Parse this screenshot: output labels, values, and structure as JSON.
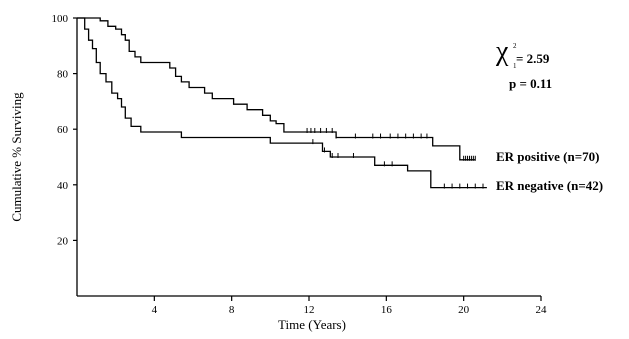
{
  "chart_data": {
    "type": "line",
    "title": "",
    "xlabel": "Time (Years)",
    "ylabel": "Cumulative % Surviving",
    "xlim": [
      0,
      24
    ],
    "ylim": [
      0,
      100
    ],
    "x_ticks": [
      "4",
      "8",
      "12",
      "16",
      "20",
      "24"
    ],
    "y_ticks": [
      "20",
      "40",
      "60",
      "80",
      "100"
    ],
    "grid": false,
    "legend": "direct labels at right",
    "annotations": {
      "chi_symbol": "χ",
      "chi_superscript": "2",
      "chi_subscript": "1",
      "chi_value": "= 2.59",
      "p_value": "p = 0.11"
    },
    "series": [
      {
        "name": "ER positive (n=70)",
        "color": "#000000",
        "steps": [
          [
            0,
            100
          ],
          [
            1.2,
            99
          ],
          [
            1.6,
            97
          ],
          [
            2.0,
            96
          ],
          [
            2.3,
            94
          ],
          [
            2.5,
            92
          ],
          [
            2.7,
            88
          ],
          [
            3.0,
            86
          ],
          [
            3.3,
            84
          ],
          [
            4.8,
            82
          ],
          [
            5.1,
            79
          ],
          [
            5.4,
            77
          ],
          [
            5.8,
            75
          ],
          [
            6.6,
            73
          ],
          [
            7.0,
            71
          ],
          [
            8.1,
            69
          ],
          [
            8.8,
            67
          ],
          [
            9.6,
            65
          ],
          [
            10.0,
            63
          ],
          [
            10.3,
            62
          ],
          [
            10.7,
            59
          ],
          [
            13.4,
            57
          ],
          [
            18.4,
            54
          ],
          [
            19.8,
            49
          ],
          [
            20.6,
            49
          ]
        ],
        "censored": [
          11.9,
          12.1,
          12.3,
          12.6,
          12.9,
          13.2,
          13.4,
          14.4,
          15.3,
          15.7,
          16.2,
          16.6,
          17.0,
          17.4,
          17.8,
          18.1,
          20.0,
          20.1,
          20.2,
          20.3,
          20.4,
          20.5,
          20.6
        ]
      },
      {
        "name": "ER negative (n=42)",
        "color": "#000000",
        "steps": [
          [
            0,
            100
          ],
          [
            0.4,
            96
          ],
          [
            0.6,
            92
          ],
          [
            0.8,
            89
          ],
          [
            1.0,
            84
          ],
          [
            1.2,
            80
          ],
          [
            1.5,
            77
          ],
          [
            1.8,
            73
          ],
          [
            2.1,
            71
          ],
          [
            2.3,
            68
          ],
          [
            2.5,
            64
          ],
          [
            2.8,
            61
          ],
          [
            3.3,
            59
          ],
          [
            5.4,
            57
          ],
          [
            10.0,
            55
          ],
          [
            12.7,
            52
          ],
          [
            13.1,
            50
          ],
          [
            15.4,
            47
          ],
          [
            17.1,
            45
          ],
          [
            18.3,
            39
          ],
          [
            21.2,
            39
          ]
        ],
        "censored": [
          12.2,
          12.8,
          13.2,
          13.5,
          14.3,
          15.9,
          16.3,
          19.0,
          19.4,
          19.8,
          20.2,
          20.6,
          21.0
        ]
      }
    ]
  }
}
